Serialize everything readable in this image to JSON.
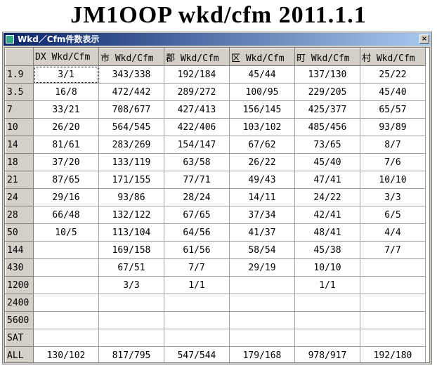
{
  "title": "JM1OOP wkd/cfm 2011.1.1",
  "window": {
    "title": "Wkd／Cfm件数表示"
  },
  "table": {
    "columns": [
      "DX Wkd/Cfm",
      "市 Wkd/Cfm",
      "郡 Wkd/Cfm",
      "区 Wkd/Cfm",
      "町 Wkd/Cfm",
      "村 Wkd/Cfm"
    ],
    "rows": [
      {
        "band": "1.9",
        "cells": [
          "3/1",
          "343/338",
          "192/184",
          "45/44",
          "137/130",
          "25/22"
        ]
      },
      {
        "band": "3.5",
        "cells": [
          "16/8",
          "472/442",
          "289/272",
          "100/95",
          "229/205",
          "45/40"
        ]
      },
      {
        "band": "7",
        "cells": [
          "33/21",
          "708/677",
          "427/413",
          "156/145",
          "425/377",
          "65/57"
        ]
      },
      {
        "band": "10",
        "cells": [
          "26/20",
          "564/545",
          "422/406",
          "103/102",
          "485/456",
          "93/89"
        ]
      },
      {
        "band": "14",
        "cells": [
          "81/61",
          "283/269",
          "154/147",
          "67/62",
          "73/65",
          "8/7"
        ]
      },
      {
        "band": "18",
        "cells": [
          "37/20",
          "133/119",
          "63/58",
          "26/22",
          "45/40",
          "7/6"
        ]
      },
      {
        "band": "21",
        "cells": [
          "87/65",
          "171/155",
          "77/71",
          "49/43",
          "47/41",
          "10/10"
        ]
      },
      {
        "band": "24",
        "cells": [
          "29/16",
          "93/86",
          "28/24",
          "14/11",
          "24/22",
          "3/3"
        ]
      },
      {
        "band": "28",
        "cells": [
          "66/48",
          "132/122",
          "67/65",
          "37/34",
          "42/41",
          "6/5"
        ]
      },
      {
        "band": "50",
        "cells": [
          "10/5",
          "113/104",
          "64/56",
          "41/37",
          "48/41",
          "4/4"
        ]
      },
      {
        "band": "144",
        "cells": [
          null,
          "169/158",
          "61/56",
          "58/54",
          "45/38",
          "7/7"
        ]
      },
      {
        "band": "430",
        "cells": [
          null,
          "67/51",
          "7/7",
          "29/19",
          "10/10",
          null
        ]
      },
      {
        "band": "1200",
        "cells": [
          null,
          "3/3",
          "1/1",
          null,
          "1/1",
          null
        ]
      },
      {
        "band": "2400",
        "cells": [
          null,
          null,
          null,
          null,
          null,
          null
        ]
      },
      {
        "band": "5600",
        "cells": [
          null,
          null,
          null,
          null,
          null,
          null
        ]
      },
      {
        "band": "SAT",
        "cells": [
          null,
          null,
          null,
          null,
          null,
          null
        ]
      },
      {
        "band": "ALL",
        "cells": [
          "130/102",
          "817/795",
          "547/544",
          "179/168",
          "978/917",
          "192/180"
        ]
      }
    ]
  }
}
